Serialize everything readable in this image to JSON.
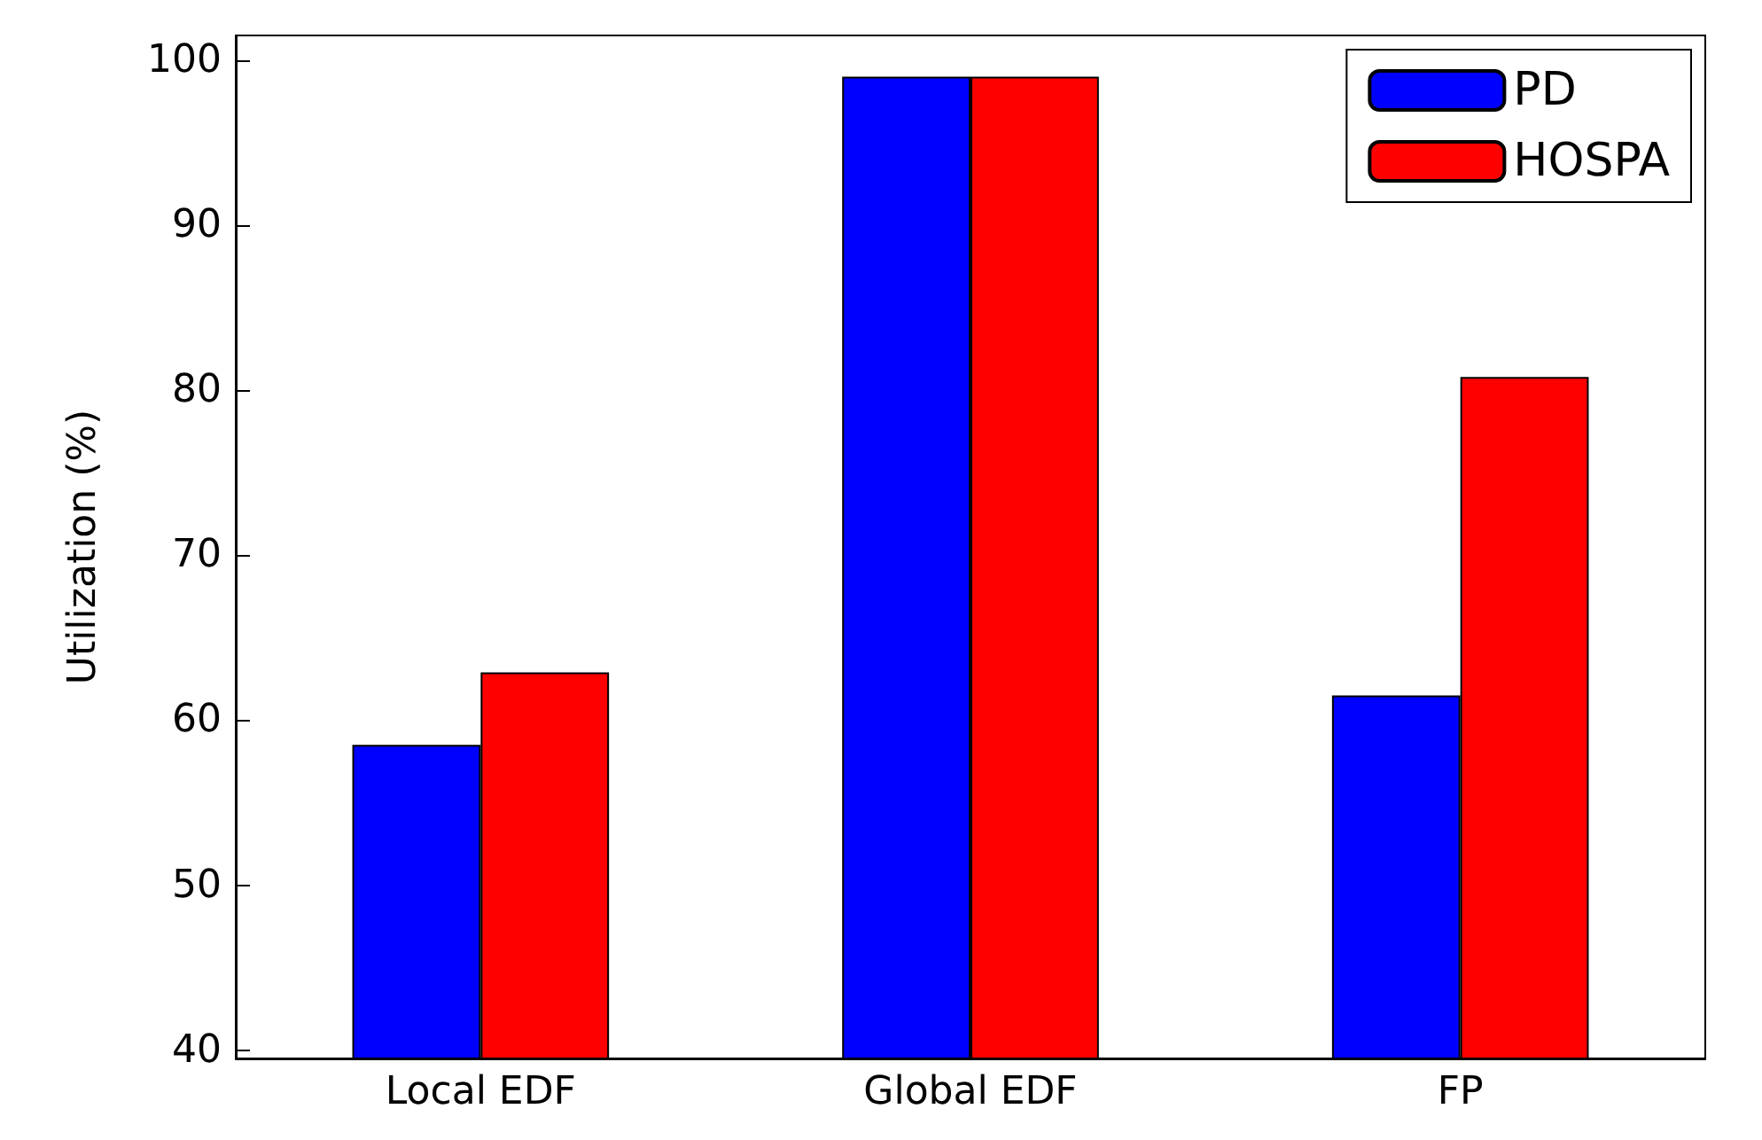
{
  "chart_data": {
    "type": "bar",
    "ylabel": "Utilization (%)",
    "categories": [
      "Local EDF",
      "Global EDF",
      "FP"
    ],
    "series": [
      {
        "name": "PD",
        "color": "#0000ff",
        "values": [
          58.5,
          99,
          61.5
        ]
      },
      {
        "name": "HOSPA",
        "color": "#ff0000",
        "values": [
          62.9,
          99,
          80.8
        ]
      }
    ],
    "ylim": [
      39.5,
      101.5
    ],
    "yticks": [
      40,
      50,
      60,
      70,
      80,
      90,
      100
    ],
    "grid": false,
    "legend": "top right"
  }
}
